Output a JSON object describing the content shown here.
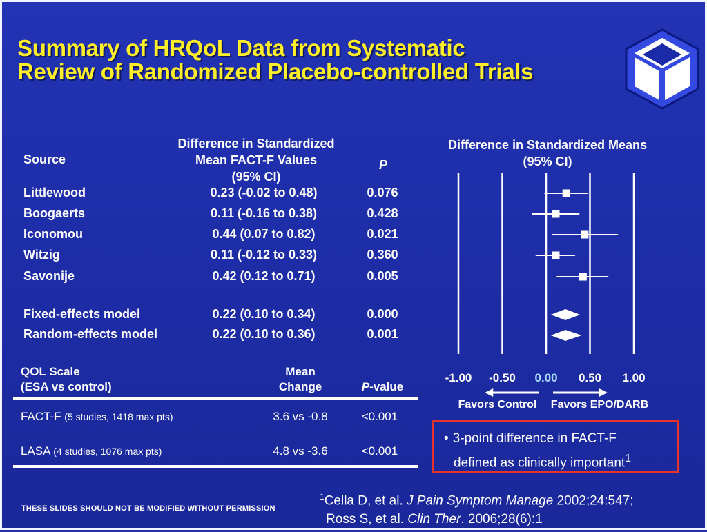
{
  "title": {
    "line1": "Summary of HRQoL Data from Systematic",
    "line2": "Review of Randomized Placebo-controlled Trials"
  },
  "logo": {
    "icon": "cube-logo-icon"
  },
  "meta_table": {
    "col_source": "Source",
    "col_diff_line1": "Difference in Standardized",
    "col_diff_line2": "Mean FACT-F Values",
    "col_diff_line3": "(95% CI)",
    "col_p": "P",
    "rows": [
      {
        "source": "Littlewood",
        "ci": "0.23 (-0.02 to 0.48)",
        "p": "0.076"
      },
      {
        "source": "Boogaerts",
        "ci": "0.11 (-0.16 to 0.38)",
        "p": "0.428"
      },
      {
        "source": "Iconomou",
        "ci": "0.44 (0.07 to 0.82)",
        "p": "0.021"
      },
      {
        "source": "Witzig",
        "ci": "0.11 (-0.12 to 0.33)",
        "p": "0.360"
      },
      {
        "source": "Savonije",
        "ci": "0.42 (0.12 to 0.71)",
        "p": "0.005"
      }
    ],
    "models": [
      {
        "source": "Fixed-effects model",
        "ci": "0.22 (0.10 to 0.34)",
        "p": "0.000"
      },
      {
        "source": "Random-effects model",
        "ci": "0.22 (0.10 to 0.36)",
        "p": "0.001"
      }
    ]
  },
  "qol_table": {
    "h_scale1": "QOL Scale",
    "h_scale2": "(ESA vs control)",
    "h_mean1": "Mean",
    "h_mean2": "Change",
    "h_p_italic": "P",
    "h_p_rest": "-value",
    "rows": [
      {
        "scale": "FACT-F",
        "detail": "(5 studies, 1418 max pts)",
        "change": "3.6 vs -0.8",
        "p": "<0.001"
      },
      {
        "scale": "LASA",
        "detail": "(4 studies, 1076 max pts)",
        "change": "4.8 vs -3.6",
        "p": "<0.001"
      }
    ]
  },
  "chart_data": {
    "type": "forest",
    "title_line1": "Difference in Standardized Means",
    "title_line2": "(95% CI)",
    "xlim": [
      -1.0,
      1.0
    ],
    "ticks": [
      "-1.00",
      "-0.50",
      "0.00",
      "0.50",
      "1.00"
    ],
    "tick_values": [
      -1.0,
      -0.5,
      0.0,
      0.5,
      1.0
    ],
    "zero_color": "#a8d8ff",
    "favors_left": "Favors Control",
    "favors_right": "Favors EPO/DARB",
    "studies": [
      {
        "name": "Littlewood",
        "est": 0.23,
        "lo": -0.02,
        "hi": 0.48
      },
      {
        "name": "Boogaerts",
        "est": 0.11,
        "lo": -0.16,
        "hi": 0.38
      },
      {
        "name": "Iconomou",
        "est": 0.44,
        "lo": 0.07,
        "hi": 0.82
      },
      {
        "name": "Witzig",
        "est": 0.11,
        "lo": -0.12,
        "hi": 0.33
      },
      {
        "name": "Savonije",
        "est": 0.42,
        "lo": 0.12,
        "hi": 0.71
      }
    ],
    "pooled": [
      {
        "name": "Fixed-effects model",
        "est": 0.22,
        "lo": 0.1,
        "hi": 0.34
      },
      {
        "name": "Random-effects model",
        "est": 0.22,
        "lo": 0.1,
        "hi": 0.36
      }
    ]
  },
  "note": {
    "bullet": "•",
    "line1": "3-point difference in FACT-F",
    "line2": "defined as clinically important",
    "sup": "1"
  },
  "footer": "THESE SLIDES SHOULD NOT BE MODIFIED WITHOUT PERMISSION",
  "refs": {
    "r1_sup": "1",
    "r1_a": "Cella D, et al. ",
    "r1_journal": "J Pain Symptom Manage",
    "r1_b": " 2002;24:547;",
    "r2_a": "Ross S, et al. ",
    "r2_journal": "Clin Ther",
    "r2_b": ". 2006;28(6):1"
  },
  "colors": {
    "background": "#1f2fa8",
    "title": "#ffef28",
    "note_border": "#e8322a"
  }
}
